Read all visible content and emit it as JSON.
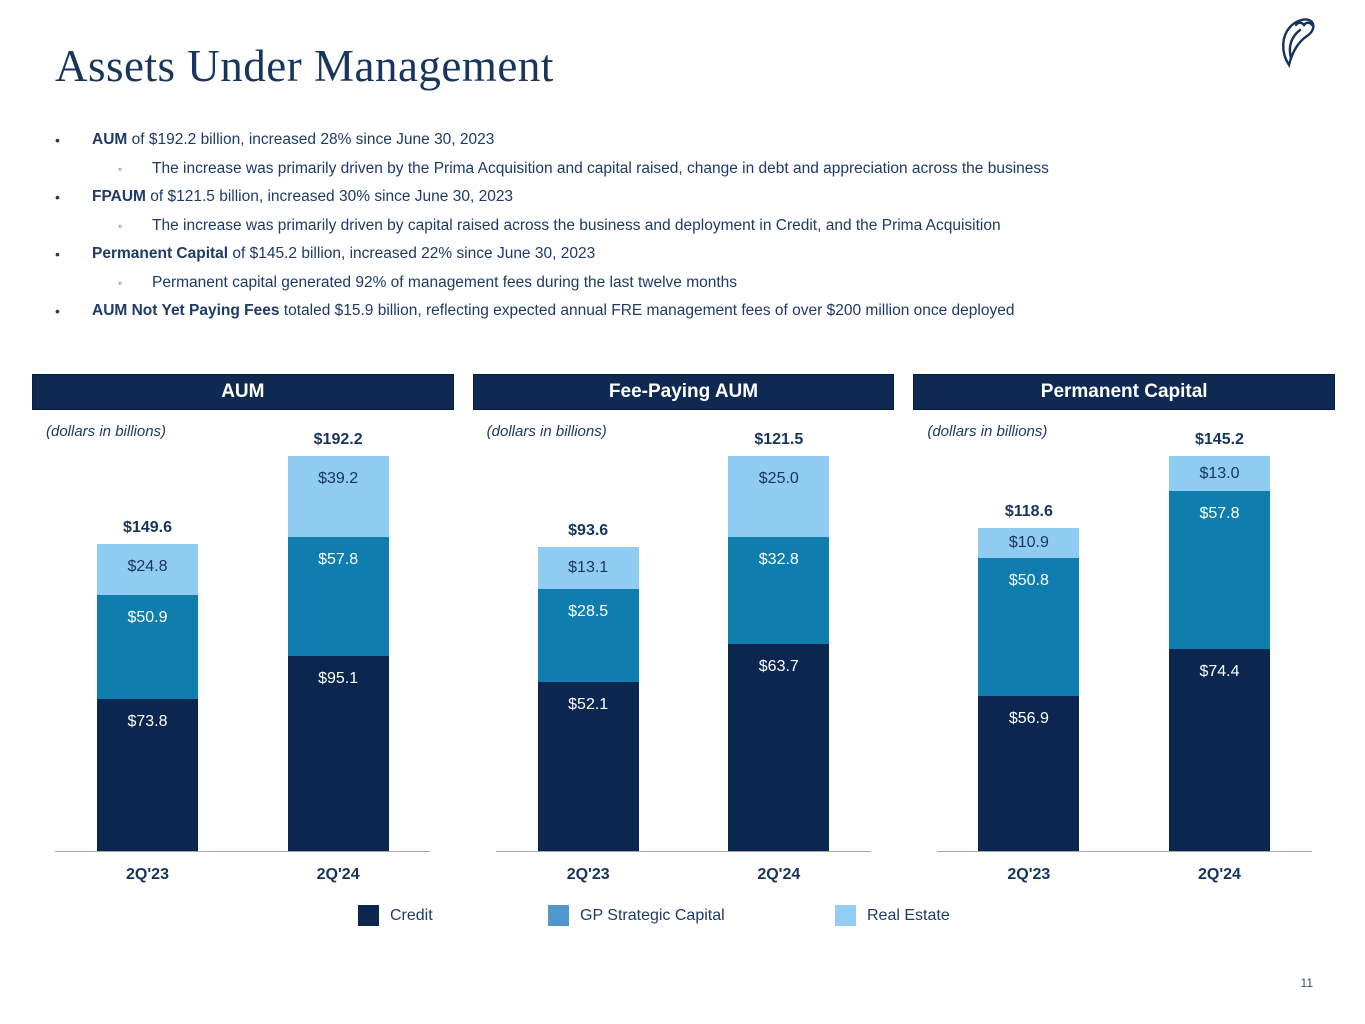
{
  "slide": {
    "title": "Assets Under Management",
    "page_number": "11",
    "logo_icon": "blue-owl-logo"
  },
  "markers": {
    "bullet": "•",
    "sub": "◦"
  },
  "bullets": [
    {
      "bold": "AUM",
      "rest": " of $192.2 billion, increased 28% since June 30, 2023",
      "sub": [
        "The increase was primarily driven by the Prima Acquisition and capital raised, change in debt and appreciation across the business"
      ]
    },
    {
      "bold": "FPAUM",
      "rest": " of $121.5 billion, increased 30% since June 30, 2023",
      "sub": [
        "The increase was primarily driven by capital raised across the business and deployment in Credit, and the Prima Acquisition"
      ]
    },
    {
      "bold": "Permanent Capital",
      "rest": " of $145.2 billion, increased 22% since June 30, 2023",
      "sub": [
        "Permanent capital generated 92% of management fees during the last twelve months"
      ]
    },
    {
      "bold": "AUM Not Yet Paying Fees",
      "rest": " totaled $15.9 billion, reflecting expected annual FRE management fees of over $200 million once deployed",
      "sub": []
    }
  ],
  "chart_data": [
    {
      "type": "bar",
      "stacked": true,
      "title": "AUM",
      "subtitle": "(dollars in billions)",
      "categories": [
        "2Q'23",
        "2Q'24"
      ],
      "totals": [
        149.6,
        192.2
      ],
      "series": [
        {
          "name": "Credit",
          "values": [
            73.8,
            95.1
          ],
          "color": "#0b2750",
          "label_color": "#ffffff"
        },
        {
          "name": "GP Strategic Capital",
          "values": [
            50.9,
            57.8
          ],
          "color": "#0f7dae",
          "label_color": "#ffffff"
        },
        {
          "name": "Real Estate",
          "values": [
            24.8,
            39.2
          ],
          "color": "#90cbf2",
          "label_color": "#16355e"
        }
      ]
    },
    {
      "type": "bar",
      "stacked": true,
      "title": "Fee-Paying AUM",
      "subtitle": "(dollars in billions)",
      "categories": [
        "2Q'23",
        "2Q'24"
      ],
      "totals": [
        93.6,
        121.5
      ],
      "series": [
        {
          "name": "Credit",
          "values": [
            52.1,
            63.7
          ],
          "color": "#0b2750",
          "label_color": "#ffffff"
        },
        {
          "name": "GP Strategic Capital",
          "values": [
            28.5,
            32.8
          ],
          "color": "#0f7dae",
          "label_color": "#ffffff"
        },
        {
          "name": "Real Estate",
          "values": [
            13.1,
            25.0
          ],
          "color": "#90cbf2",
          "label_color": "#16355e"
        }
      ]
    },
    {
      "type": "bar",
      "stacked": true,
      "title": "Permanent Capital",
      "subtitle": "(dollars in billions)",
      "categories": [
        "2Q'23",
        "2Q'24"
      ],
      "totals": [
        118.6,
        145.2
      ],
      "series": [
        {
          "name": "Credit",
          "values": [
            56.9,
            74.4
          ],
          "color": "#0b2750",
          "label_color": "#ffffff"
        },
        {
          "name": "GP Strategic Capital",
          "values": [
            50.8,
            57.8
          ],
          "color": "#0f7dae",
          "label_color": "#ffffff"
        },
        {
          "name": "Real Estate",
          "values": [
            10.9,
            13.0
          ],
          "color": "#90cbf2",
          "label_color": "#16355e"
        }
      ]
    }
  ],
  "legend": [
    {
      "label": "Credit",
      "color": "#0b2750"
    },
    {
      "label": "GP Strategic Capital",
      "color": "#4f97cc"
    },
    {
      "label": "Real Estate",
      "color": "#92cdf4"
    }
  ],
  "colors": {
    "header_bar": "#0e2a52",
    "credit": "#0b2750",
    "gp_strategic_capital": "#0f7dae",
    "real_estate": "#90cbf2",
    "text_navy": "#1e3a67",
    "axis_gray": "#a8a8a8"
  }
}
